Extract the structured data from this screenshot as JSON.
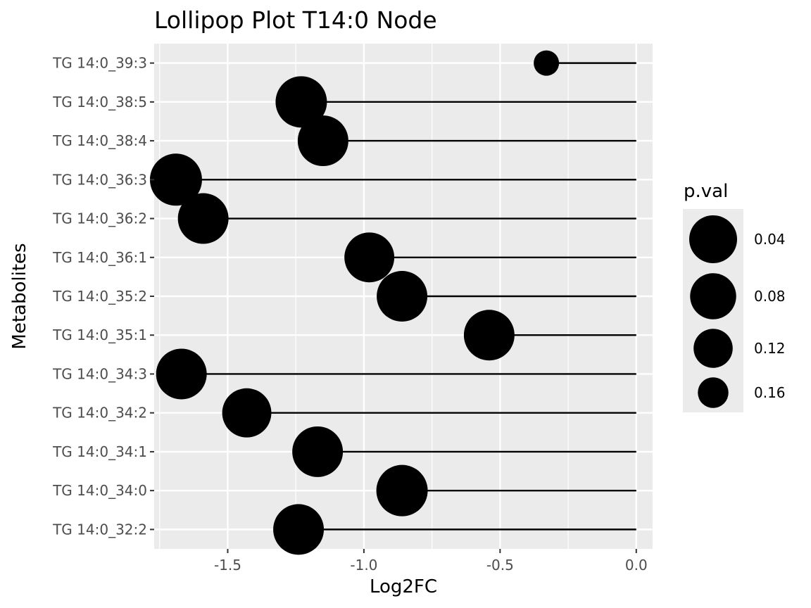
{
  "chart_data": {
    "type": "lollipop",
    "title": "Lollipop Plot T14:0 Node",
    "xlabel": "Log2FC",
    "ylabel": "Metabolites",
    "xlim": [
      -1.77,
      0.06
    ],
    "x_ticks": [
      -1.5,
      -1.0,
      -0.5,
      0.0
    ],
    "x_tick_labels": [
      "-1.5",
      "-1.0",
      "-0.5",
      "0.0"
    ],
    "baseline": 0.0,
    "grid": true,
    "background_color": "#ebebeb",
    "grid_color": "#ffffff",
    "mark_color": "#000000",
    "categories": [
      "TG 14:0_39:3",
      "TG 14:0_38:5",
      "TG 14:0_38:4",
      "TG 14:0_36:3",
      "TG 14:0_36:2",
      "TG 14:0_36:1",
      "TG 14:0_35:2",
      "TG 14:0_35:1",
      "TG 14:0_34:3",
      "TG 14:0_34:2",
      "TG 14:0_34:1",
      "TG 14:0_34:0",
      "TG 14:0_32:2"
    ],
    "values": [
      -0.33,
      -1.23,
      -1.15,
      -1.69,
      -1.59,
      -0.98,
      -0.86,
      -0.54,
      -1.67,
      -1.43,
      -1.17,
      -0.86,
      -1.24
    ],
    "pvals": [
      0.18,
      0.045,
      0.05,
      0.04,
      0.05,
      0.055,
      0.05,
      0.05,
      0.05,
      0.06,
      0.05,
      0.045,
      0.05
    ],
    "size_legend": {
      "title": "p.val",
      "position": "right",
      "entries": [
        {
          "label": "0.04",
          "value": 0.04
        },
        {
          "label": "0.08",
          "value": 0.08
        },
        {
          "label": "0.12",
          "value": 0.12
        },
        {
          "label": "0.16",
          "value": 0.16
        }
      ]
    }
  }
}
